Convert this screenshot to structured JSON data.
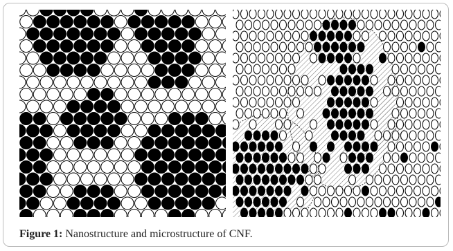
{
  "figure": {
    "label": "Figure 1:",
    "caption": "Nanostructure and microstructure of CNF."
  }
}
